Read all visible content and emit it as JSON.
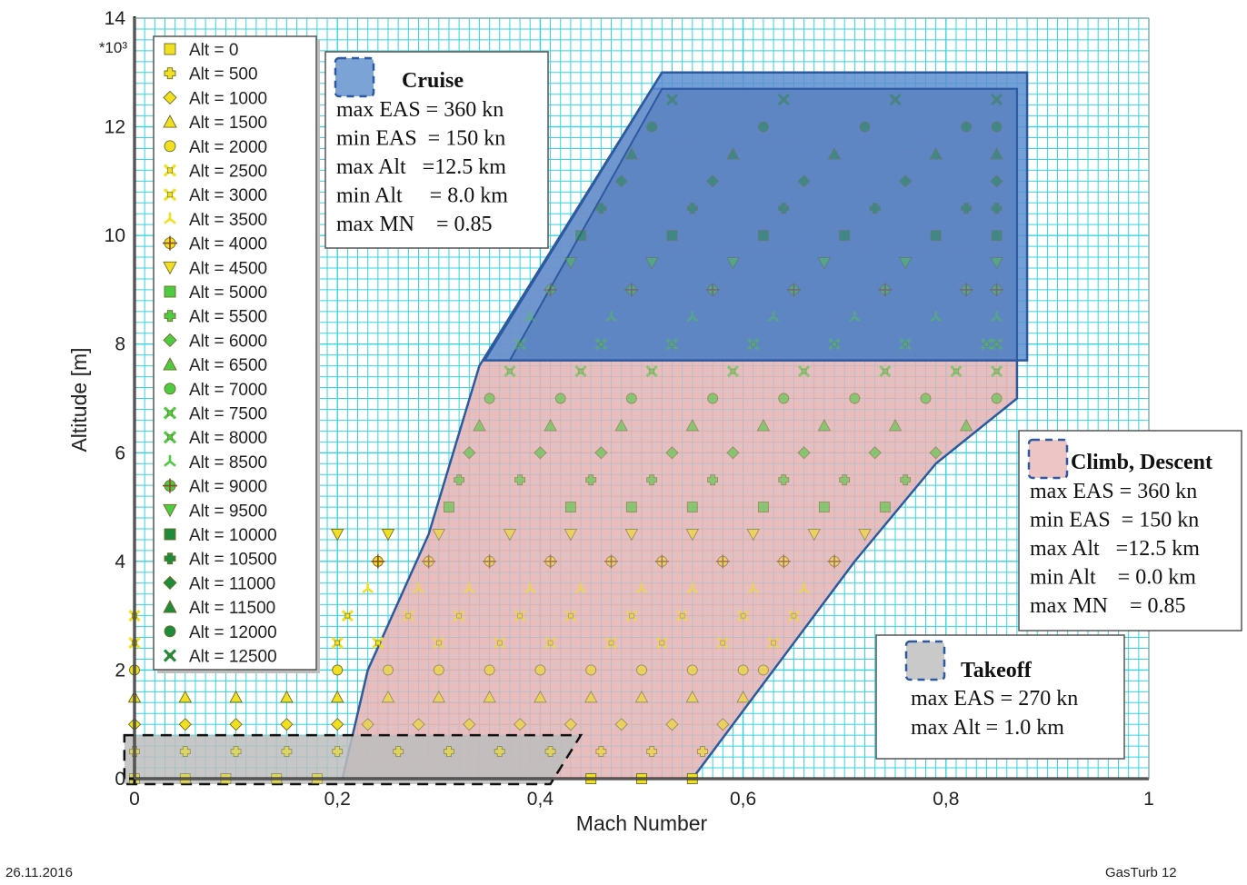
{
  "footer": {
    "date": "26.11.2016",
    "software": "GasTurb 12"
  },
  "chart_data": {
    "type": "scatter",
    "xlabel": "Mach Number",
    "ylabel": "Altitude [m]",
    "y_multiplier": "*10³",
    "xlim": [
      0,
      1
    ],
    "ylim": [
      0,
      14000
    ],
    "x_ticks": [
      {
        "value": 0,
        "label": "0"
      },
      {
        "value": 0.2,
        "label": "0,2"
      },
      {
        "value": 0.4,
        "label": "0,4"
      },
      {
        "value": 0.6,
        "label": "0,6"
      },
      {
        "value": 0.8,
        "label": "0,8"
      },
      {
        "value": 1,
        "label": "1"
      }
    ],
    "y_ticks": [
      {
        "value": 0,
        "label": "0"
      },
      {
        "value": 2000,
        "label": "2"
      },
      {
        "value": 4000,
        "label": "4"
      },
      {
        "value": 6000,
        "label": "6"
      },
      {
        "value": 8000,
        "label": "8"
      },
      {
        "value": 10000,
        "label": "10"
      },
      {
        "value": 12000,
        "label": "12"
      },
      {
        "value": 14000,
        "label": "14"
      }
    ],
    "grid": true,
    "grid_color": "#36d4e0",
    "legend_position": "top-left",
    "series": [
      {
        "name": "Alt = 0",
        "y": 0,
        "marker": "square",
        "color": "#f0e020",
        "x": [
          0.0,
          0.05,
          0.09,
          0.14,
          0.18,
          0.45,
          0.5,
          0.55
        ]
      },
      {
        "name": "Alt = 500",
        "y": 500,
        "marker": "cross",
        "color": "#f0e020",
        "x": [
          0.0,
          0.05,
          0.1,
          0.15,
          0.2,
          0.26,
          0.31,
          0.36,
          0.41,
          0.46,
          0.51,
          0.56
        ]
      },
      {
        "name": "Alt = 1000",
        "y": 1000,
        "marker": "diamond",
        "color": "#f0e020",
        "x": [
          0.0,
          0.05,
          0.1,
          0.15,
          0.2,
          0.23,
          0.28,
          0.33,
          0.38,
          0.43,
          0.48,
          0.53,
          0.58
        ]
      },
      {
        "name": "Alt = 1500",
        "y": 1500,
        "marker": "triangle-up",
        "color": "#f0e020",
        "x": [
          0.0,
          0.05,
          0.1,
          0.15,
          0.2,
          0.25,
          0.3,
          0.35,
          0.4,
          0.45,
          0.5,
          0.55,
          0.6
        ]
      },
      {
        "name": "Alt = 2000",
        "y": 2000,
        "marker": "circle",
        "color": "#f0e020",
        "x": [
          0.0,
          0.2,
          0.25,
          0.3,
          0.35,
          0.4,
          0.45,
          0.5,
          0.55,
          0.6,
          0.62
        ]
      },
      {
        "name": "Alt = 2500",
        "y": 2500,
        "marker": "x-box",
        "color": "#f0e020",
        "x": [
          0.0,
          0.2,
          0.24,
          0.3,
          0.36,
          0.41,
          0.47,
          0.52,
          0.58,
          0.63
        ]
      },
      {
        "name": "Alt = 3000",
        "y": 3000,
        "marker": "x-box",
        "color": "#f0e020",
        "x": [
          0.0,
          0.21,
          0.27,
          0.32,
          0.38,
          0.43,
          0.49,
          0.54,
          0.6,
          0.65
        ]
      },
      {
        "name": "Alt = 3500",
        "y": 3500,
        "marker": "tri",
        "color": "#f0e020",
        "x": [
          0.23,
          0.28,
          0.33,
          0.39,
          0.44,
          0.5,
          0.55,
          0.61,
          0.66
        ]
      },
      {
        "name": "Alt = 4000",
        "y": 4000,
        "marker": "gear",
        "color": "#f0e020",
        "x": [
          0.24,
          0.29,
          0.35,
          0.41,
          0.47,
          0.52,
          0.58,
          0.64,
          0.69
        ]
      },
      {
        "name": "Alt = 4500",
        "y": 4500,
        "marker": "triangle-down",
        "color": "#f0e020",
        "x": [
          0.2,
          0.25,
          0.3,
          0.37,
          0.43,
          0.49,
          0.55,
          0.61,
          0.67,
          0.72
        ]
      },
      {
        "name": "Alt = 5000",
        "y": 5000,
        "marker": "square",
        "color": "#4ecb40",
        "x": [
          0.31,
          0.43,
          0.49,
          0.55,
          0.62,
          0.68,
          0.74
        ]
      },
      {
        "name": "Alt = 5500",
        "y": 5500,
        "marker": "cross",
        "color": "#4ecb40",
        "x": [
          0.32,
          0.38,
          0.45,
          0.51,
          0.57,
          0.64,
          0.7,
          0.76
        ]
      },
      {
        "name": "Alt = 6000",
        "y": 6000,
        "marker": "diamond",
        "color": "#4ecb40",
        "x": [
          0.33,
          0.4,
          0.46,
          0.53,
          0.59,
          0.66,
          0.73,
          0.79
        ]
      },
      {
        "name": "Alt = 6500",
        "y": 6500,
        "marker": "triangle-up",
        "color": "#4ecb40",
        "x": [
          0.34,
          0.41,
          0.48,
          0.55,
          0.62,
          0.68,
          0.75,
          0.82
        ]
      },
      {
        "name": "Alt = 7000",
        "y": 7000,
        "marker": "circle",
        "color": "#4ecb40",
        "x": [
          0.35,
          0.42,
          0.49,
          0.57,
          0.64,
          0.71,
          0.78,
          0.85
        ]
      },
      {
        "name": "Alt = 7500",
        "y": 7500,
        "marker": "x-box",
        "color": "#4ecb40",
        "x": [
          0.37,
          0.44,
          0.51,
          0.59,
          0.66,
          0.74,
          0.81,
          0.85
        ]
      },
      {
        "name": "Alt = 8000",
        "y": 8000,
        "marker": "x-box",
        "color": "#4ecb40",
        "x": [
          0.38,
          0.46,
          0.53,
          0.61,
          0.69,
          0.76,
          0.84,
          0.85
        ]
      },
      {
        "name": "Alt = 8500",
        "y": 8500,
        "marker": "tri",
        "color": "#4ecb40",
        "x": [
          0.39,
          0.47,
          0.55,
          0.63,
          0.71,
          0.79,
          0.85
        ]
      },
      {
        "name": "Alt = 9000",
        "y": 9000,
        "marker": "gear",
        "color": "#4ecb40",
        "x": [
          0.41,
          0.49,
          0.57,
          0.65,
          0.74,
          0.82,
          0.85
        ]
      },
      {
        "name": "Alt = 9500",
        "y": 9500,
        "marker": "triangle-down",
        "color": "#4ecb40",
        "x": [
          0.43,
          0.51,
          0.59,
          0.68,
          0.76,
          0.85
        ]
      },
      {
        "name": "Alt = 10000",
        "y": 10000,
        "marker": "square",
        "color": "#1f8a3a",
        "x": [
          0.44,
          0.53,
          0.62,
          0.7,
          0.79,
          0.85
        ]
      },
      {
        "name": "Alt = 10500",
        "y": 10500,
        "marker": "cross",
        "color": "#1f8a3a",
        "x": [
          0.46,
          0.55,
          0.64,
          0.73,
          0.82,
          0.85
        ]
      },
      {
        "name": "Alt = 11000",
        "y": 11000,
        "marker": "diamond",
        "color": "#1f8a3a",
        "x": [
          0.48,
          0.57,
          0.66,
          0.76,
          0.85
        ]
      },
      {
        "name": "Alt = 11500",
        "y": 11500,
        "marker": "triangle-up",
        "color": "#1f8a3a",
        "x": [
          0.49,
          0.59,
          0.69,
          0.79,
          0.85
        ]
      },
      {
        "name": "Alt = 12000",
        "y": 12000,
        "marker": "circle",
        "color": "#1f8a3a",
        "x": [
          0.51,
          0.62,
          0.72,
          0.82,
          0.85
        ]
      },
      {
        "name": "Alt = 12500",
        "y": 12500,
        "marker": "x-box",
        "color": "#1f8a3a",
        "x": [
          0.53,
          0.64,
          0.75,
          0.85
        ]
      }
    ],
    "regions": [
      {
        "name": "Takeoff",
        "fill": "#bdbdbd",
        "stroke": "#111111",
        "dashed": true,
        "lines": [
          "max EAS = 270 kn",
          "max Alt = 1.0 km"
        ],
        "polygon": [
          [
            -0.01,
            800
          ],
          [
            0.44,
            800
          ],
          [
            0.41,
            -100
          ],
          [
            -0.01,
            -100
          ]
        ]
      },
      {
        "name": "Climb, Descent",
        "fill": "#e8b0b0",
        "stroke": "#2c5aa0",
        "dashed": false,
        "lines": [
          "max EAS = 360 kn",
          "min EAS  = 150 kn",
          "max Alt   =12.5 km",
          "min Alt    = 0.0 km",
          "max MN    = 0.85"
        ],
        "polygon": [
          [
            0.205,
            0
          ],
          [
            0.23,
            2000
          ],
          [
            0.29,
            4500
          ],
          [
            0.34,
            7600
          ],
          [
            0.51,
            12700
          ],
          [
            0.87,
            12700
          ],
          [
            0.87,
            7000
          ],
          [
            0.79,
            5800
          ],
          [
            0.71,
            4000
          ],
          [
            0.55,
            0
          ]
        ]
      },
      {
        "name": "Cruise",
        "fill": "#5c8ed0",
        "stroke": "#2c5aa0",
        "dashed": false,
        "lines": [
          "max EAS = 360 kn",
          "min EAS  = 150 kn",
          "max Alt   =12.5 km",
          "min Alt     = 8.0 km",
          "max MN    = 0.85"
        ],
        "polygon": [
          [
            0.345,
            7700
          ],
          [
            0.52,
            13000
          ],
          [
            0.88,
            13000
          ],
          [
            0.88,
            7700
          ]
        ]
      }
    ]
  }
}
